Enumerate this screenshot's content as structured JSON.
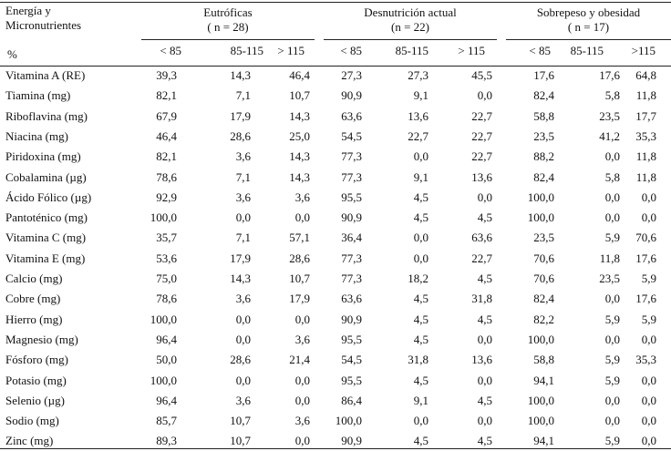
{
  "header": {
    "label_lines": [
      "Energía y",
      "Micronutrientes"
    ],
    "percent": "%",
    "groups": [
      {
        "title": "Eutróficas",
        "n": "( n = 28)"
      },
      {
        "title": "Desnutrición actual",
        "n": "(n = 22)"
      },
      {
        "title": "Sobrepeso y obesidad",
        "n": "( n = 17)"
      }
    ],
    "subheaders": [
      "< 85",
      "85-115",
      "> 115",
      "< 85",
      "85-115",
      "> 115",
      "< 85",
      "85-115",
      ">115"
    ]
  },
  "table": {
    "rows": [
      [
        "Vitamina A (RE)",
        "39,3",
        "14,3",
        "46,4",
        "27,3",
        "27,3",
        "45,5",
        "17,6",
        "17,6",
        "64,8"
      ],
      [
        "Tiamina (mg)",
        "82,1",
        "7,1",
        "10,7",
        "90,9",
        "9,1",
        "0,0",
        "82,4",
        "5,8",
        "11,8"
      ],
      [
        "Riboflavina (mg)",
        "67,9",
        "17,9",
        "14,3",
        "63,6",
        "13,6",
        "22,7",
        "58,8",
        "23,5",
        "17,7"
      ],
      [
        "Niacina (mg)",
        "46,4",
        "28,6",
        "25,0",
        "54,5",
        "22,7",
        "22,7",
        "23,5",
        "41,2",
        "35,3"
      ],
      [
        "Piridoxina (mg)",
        "82,1",
        "3,6",
        "14,3",
        "77,3",
        "0,0",
        "22,7",
        "88,2",
        "0,0",
        "11,8"
      ],
      [
        "Cobalamina (µg)",
        "78,6",
        "7,1",
        "14,3",
        "77,3",
        "9,1",
        "13,6",
        "82,4",
        "5,8",
        "11,8"
      ],
      [
        "Ácido Fólico (µg)",
        "92,9",
        "3,6",
        "3,6",
        "95,5",
        "4,5",
        "0,0",
        "100,0",
        "0,0",
        "0,0"
      ],
      [
        "Pantoténico (mg)",
        "100,0",
        "0,0",
        "0,0",
        "90,9",
        "4,5",
        "4,5",
        "100,0",
        "0,0",
        "0,0"
      ],
      [
        "Vitamina C (mg)",
        "35,7",
        "7,1",
        "57,1",
        "36,4",
        "0,0",
        "63,6",
        "23,5",
        "5,9",
        "70,6"
      ],
      [
        "Vitamina E (mg)",
        "53,6",
        "17,9",
        "28,6",
        "77,3",
        "0,0",
        "22,7",
        "70,6",
        "11,8",
        "17,6"
      ],
      [
        "Calcio (mg)",
        "75,0",
        "14,3",
        "10,7",
        "77,3",
        "18,2",
        "4,5",
        "70,6",
        "23,5",
        "5,9"
      ],
      [
        "Cobre (mg)",
        "78,6",
        "3,6",
        "17,9",
        "63,6",
        "4,5",
        "31,8",
        "82,4",
        "0,0",
        "17,6"
      ],
      [
        "Hierro (mg)",
        "100,0",
        "0,0",
        "0,0",
        "90,9",
        "4,5",
        "4,5",
        "82,2",
        "5,9",
        "5,9"
      ],
      [
        "Magnesio (mg)",
        "96,4",
        "0,0",
        "3,6",
        "95,5",
        "4,5",
        "0,0",
        "100,0",
        "0,0",
        "0,0"
      ],
      [
        "Fósforo (mg)",
        "50,0",
        "28,6",
        "21,4",
        "54,5",
        "31,8",
        "13,6",
        "58,8",
        "5,9",
        "35,3"
      ],
      [
        "Potasio (mg)",
        "100,0",
        "0,0",
        "0,0",
        "95,5",
        "4,5",
        "0,0",
        "94,1",
        "5,9",
        "0,0"
      ],
      [
        "Selenio (µg)",
        "96,4",
        "3,6",
        "0,0",
        "86,4",
        "9,1",
        "4,5",
        "100,0",
        "0,0",
        "0,0"
      ],
      [
        "Sodio (mg)",
        "85,7",
        "10,7",
        "3,6",
        "100,0",
        "0,0",
        "0,0",
        "100,0",
        "0,0",
        "0,0"
      ],
      [
        "Zinc (mg)",
        "89,3",
        "10,7",
        "0,0",
        "90,9",
        "4,5",
        "4,5",
        "94,1",
        "5,9",
        "0,0"
      ]
    ]
  }
}
